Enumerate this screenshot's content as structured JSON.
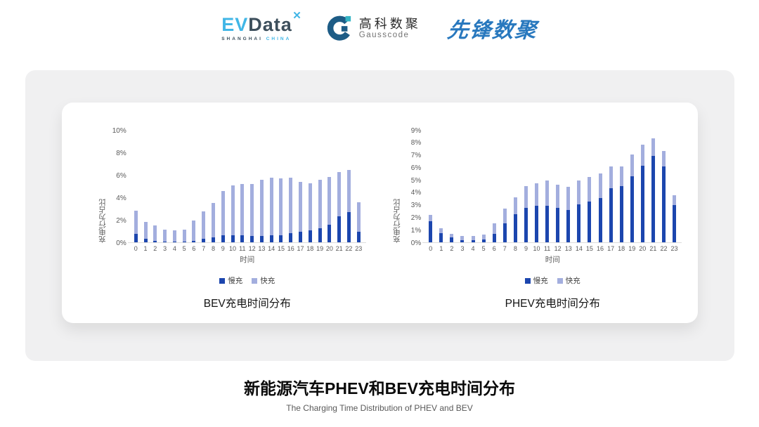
{
  "header": {
    "evdata": {
      "ev": "EV",
      "data": "Data",
      "mark": "✕",
      "sub_left": "SHANGHAI",
      "sub_right": "CHINA"
    },
    "gausscode": {
      "cn": "高科数聚",
      "en": "Gausscode"
    },
    "pioneer": {
      "text": "先锋数聚"
    }
  },
  "colors": {
    "slow_charge": "#1C46AE",
    "fast_charge": "#A3AEDE",
    "evdata_blue": "#41B6E6",
    "evdata_dark": "#3D4F5C",
    "gausscode_navy": "#1D5C86",
    "gausscode_teal": "#35B4C4",
    "pioneer_blue": "#2878BE",
    "panel_gray": "#F0F0F1"
  },
  "chart_data": [
    {
      "type": "bar",
      "stacked": true,
      "title": "BEV充电时间分布",
      "xlabel": "时间",
      "ylabel": "充电行为占比",
      "ylim": [
        0,
        10
      ],
      "yticks": [
        "0%",
        "2%",
        "4%",
        "6%",
        "8%",
        "10%"
      ],
      "legend_position": "bottom",
      "grid": false,
      "categories": [
        0,
        1,
        2,
        3,
        4,
        5,
        6,
        7,
        8,
        9,
        10,
        11,
        12,
        13,
        14,
        15,
        16,
        17,
        18,
        19,
        20,
        21,
        22,
        23
      ],
      "series": [
        {
          "name": "慢充",
          "color": "#1C46AE",
          "values": [
            0.8,
            0.4,
            0.2,
            0.15,
            0.1,
            0.1,
            0.2,
            0.35,
            0.5,
            0.7,
            0.7,
            0.7,
            0.65,
            0.65,
            0.7,
            0.7,
            0.85,
            1.0,
            1.1,
            1.3,
            1.6,
            2.4,
            2.75,
            1.0
          ]
        },
        {
          "name": "快充",
          "color": "#A3AEDE",
          "values": [
            2.1,
            1.5,
            1.35,
            1.05,
            1.0,
            1.1,
            1.8,
            2.45,
            3.05,
            3.9,
            4.45,
            4.55,
            4.6,
            4.95,
            5.1,
            5.05,
            4.95,
            4.45,
            4.2,
            4.3,
            4.3,
            3.9,
            3.75,
            2.6
          ]
        }
      ]
    },
    {
      "type": "bar",
      "stacked": true,
      "title": "PHEV充电时间分布",
      "xlabel": "时间",
      "ylabel": "充电行为占比",
      "ylim": [
        0,
        9
      ],
      "yticks": [
        "0%",
        "1%",
        "2%",
        "3%",
        "4%",
        "5%",
        "6%",
        "7%",
        "8%",
        "9%"
      ],
      "legend_position": "bottom",
      "grid": false,
      "categories": [
        0,
        1,
        2,
        3,
        4,
        5,
        6,
        7,
        8,
        9,
        10,
        11,
        12,
        13,
        14,
        15,
        16,
        17,
        18,
        19,
        20,
        21,
        22,
        23
      ],
      "series": [
        {
          "name": "慢充",
          "color": "#1C46AE",
          "values": [
            1.75,
            0.8,
            0.45,
            0.25,
            0.25,
            0.3,
            0.75,
            1.6,
            2.3,
            2.8,
            3.0,
            3.0,
            2.8,
            2.65,
            3.1,
            3.3,
            3.6,
            4.4,
            4.55,
            5.35,
            6.2,
            7.0,
            6.15,
            3.05
          ]
        },
        {
          "name": "快充",
          "color": "#A3AEDE",
          "values": [
            0.5,
            0.4,
            0.3,
            0.3,
            0.3,
            0.4,
            0.85,
            1.15,
            1.35,
            1.75,
            1.8,
            2.0,
            1.85,
            1.85,
            1.9,
            2.0,
            1.95,
            1.75,
            1.6,
            1.75,
            1.7,
            1.4,
            1.2,
            0.8
          ]
        }
      ]
    }
  ],
  "footer": {
    "title": "新能源汽车PHEV和BEV充电时间分布",
    "subtitle": "The Charging Time Distribution of PHEV and BEV"
  }
}
